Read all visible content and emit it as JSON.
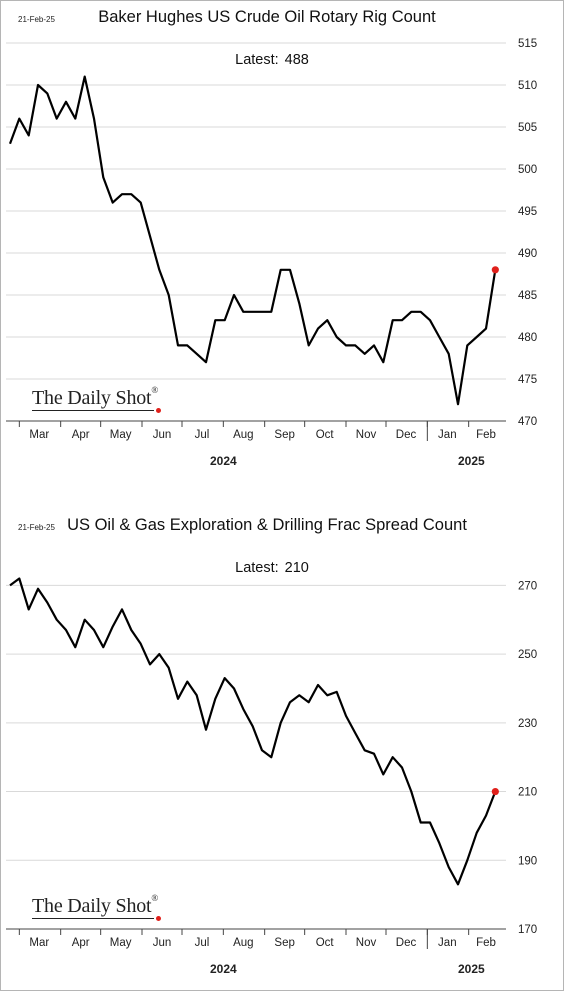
{
  "charts": [
    {
      "date_stamp": "21-Feb-25",
      "title": "Baker Hughes US Crude Oil Rotary Rig Count",
      "latest_label": "Latest:",
      "latest_value": "488",
      "logo_text": "The Daily Shot",
      "logo_mark": "®"
    },
    {
      "date_stamp": "21-Feb-25",
      "title": "US Oil & Gas Exploration & Drilling Frac Spread Count",
      "latest_label": "Latest:",
      "latest_value": "210",
      "logo_text": "The Daily Shot",
      "logo_mark": "®"
    }
  ],
  "chart_data": [
    {
      "type": "line",
      "title": "Baker Hughes US Crude Oil Rotary Rig Count",
      "ylim": [
        470,
        515
      ],
      "yticks": [
        470,
        475,
        480,
        485,
        490,
        495,
        500,
        505,
        510,
        515
      ],
      "y_axis_position": "right",
      "grid": true,
      "months": [
        "Mar",
        "Apr",
        "May",
        "Jun",
        "Jul",
        "Aug",
        "Sep",
        "Oct",
        "Nov",
        "Dec",
        "Jan",
        "Feb"
      ],
      "years": [
        "2024",
        "2025"
      ],
      "series": [
        {
          "color": "#000000",
          "x": [
            "2024-02-23",
            "2024-03-01",
            "2024-03-08",
            "2024-03-15",
            "2024-03-22",
            "2024-03-29",
            "2024-04-05",
            "2024-04-12",
            "2024-04-19",
            "2024-04-26",
            "2024-05-03",
            "2024-05-10",
            "2024-05-17",
            "2024-05-24",
            "2024-05-31",
            "2024-06-07",
            "2024-06-14",
            "2024-06-21",
            "2024-06-28",
            "2024-07-05",
            "2024-07-12",
            "2024-07-19",
            "2024-07-26",
            "2024-08-02",
            "2024-08-09",
            "2024-08-16",
            "2024-08-23",
            "2024-08-30",
            "2024-09-06",
            "2024-09-13",
            "2024-09-20",
            "2024-09-27",
            "2024-10-04",
            "2024-10-11",
            "2024-10-18",
            "2024-10-25",
            "2024-11-01",
            "2024-11-08",
            "2024-11-15",
            "2024-11-22",
            "2024-11-29",
            "2024-12-06",
            "2024-12-13",
            "2024-12-20",
            "2024-12-27",
            "2025-01-03",
            "2025-01-10",
            "2025-01-17",
            "2025-01-24",
            "2025-01-31",
            "2025-02-07",
            "2025-02-14",
            "2025-02-21"
          ],
          "values": [
            503,
            506,
            504,
            510,
            509,
            506,
            508,
            506,
            511,
            506,
            499,
            496,
            497,
            497,
            496,
            492,
            488,
            485,
            479,
            479,
            478,
            477,
            482,
            482,
            485,
            483,
            483,
            483,
            483,
            488,
            488,
            484,
            479,
            481,
            482,
            480,
            479,
            479,
            478,
            479,
            477,
            482,
            482,
            483,
            483,
            482,
            480,
            478,
            472,
            479,
            480,
            481,
            488
          ]
        }
      ],
      "latest": {
        "x": "2025-02-21",
        "value": 488,
        "marker_color": "#e0201b"
      }
    },
    {
      "type": "line",
      "title": "US Oil & Gas Exploration & Drilling Frac Spread Count",
      "ylim": [
        170,
        280
      ],
      "yticks": [
        170,
        190,
        210,
        230,
        250,
        270
      ],
      "y_axis_position": "right",
      "grid": true,
      "months": [
        "Mar",
        "Apr",
        "May",
        "Jun",
        "Jul",
        "Aug",
        "Sep",
        "Oct",
        "Nov",
        "Dec",
        "Jan",
        "Feb"
      ],
      "years": [
        "2024",
        "2025"
      ],
      "series": [
        {
          "color": "#000000",
          "x": [
            "2024-02-23",
            "2024-03-01",
            "2024-03-08",
            "2024-03-15",
            "2024-03-22",
            "2024-03-29",
            "2024-04-05",
            "2024-04-12",
            "2024-04-19",
            "2024-04-26",
            "2024-05-03",
            "2024-05-10",
            "2024-05-17",
            "2024-05-24",
            "2024-05-31",
            "2024-06-07",
            "2024-06-14",
            "2024-06-21",
            "2024-06-28",
            "2024-07-05",
            "2024-07-12",
            "2024-07-19",
            "2024-07-26",
            "2024-08-02",
            "2024-08-09",
            "2024-08-16",
            "2024-08-23",
            "2024-08-30",
            "2024-09-06",
            "2024-09-13",
            "2024-09-20",
            "2024-09-27",
            "2024-10-04",
            "2024-10-11",
            "2024-10-18",
            "2024-10-25",
            "2024-11-01",
            "2024-11-08",
            "2024-11-15",
            "2024-11-22",
            "2024-11-29",
            "2024-12-06",
            "2024-12-13",
            "2024-12-20",
            "2024-12-27",
            "2025-01-03",
            "2025-01-10",
            "2025-01-17",
            "2025-01-24",
            "2025-01-31",
            "2025-02-07",
            "2025-02-14",
            "2025-02-21"
          ],
          "values": [
            270,
            272,
            263,
            269,
            265,
            260,
            257,
            252,
            260,
            257,
            252,
            258,
            263,
            257,
            253,
            247,
            250,
            246,
            237,
            242,
            238,
            228,
            237,
            243,
            240,
            234,
            229,
            222,
            220,
            230,
            236,
            238,
            236,
            241,
            238,
            239,
            232,
            227,
            222,
            221,
            215,
            220,
            217,
            210,
            201,
            201,
            195,
            188,
            183,
            190,
            198,
            203,
            210
          ]
        }
      ],
      "latest": {
        "x": "2025-02-21",
        "value": 210,
        "marker_color": "#e0201b"
      }
    }
  ]
}
